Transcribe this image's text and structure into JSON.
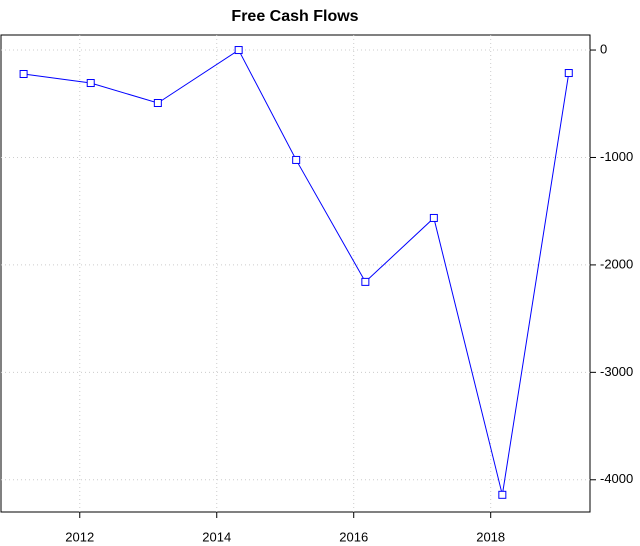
{
  "chart_data": {
    "type": "line",
    "title": "Free Cash Flows",
    "x": [
      2011.18,
      2012.16,
      2013.14,
      2014.32,
      2015.16,
      2016.17,
      2017.17,
      2018.17,
      2019.14
    ],
    "values": [
      -223,
      -307,
      -493,
      0,
      -1023,
      -2158,
      -1563,
      -4140,
      -214
    ],
    "color": "#0000ff",
    "xlim": [
      2010.85,
      2019.45
    ],
    "xticks": [
      2012,
      2014,
      2016,
      2018
    ],
    "ylim": [
      -4300,
      140
    ],
    "yticks": [
      0,
      -1000,
      -2000,
      -3000,
      -4000
    ],
    "grid": true,
    "y_axis_side": "right"
  }
}
